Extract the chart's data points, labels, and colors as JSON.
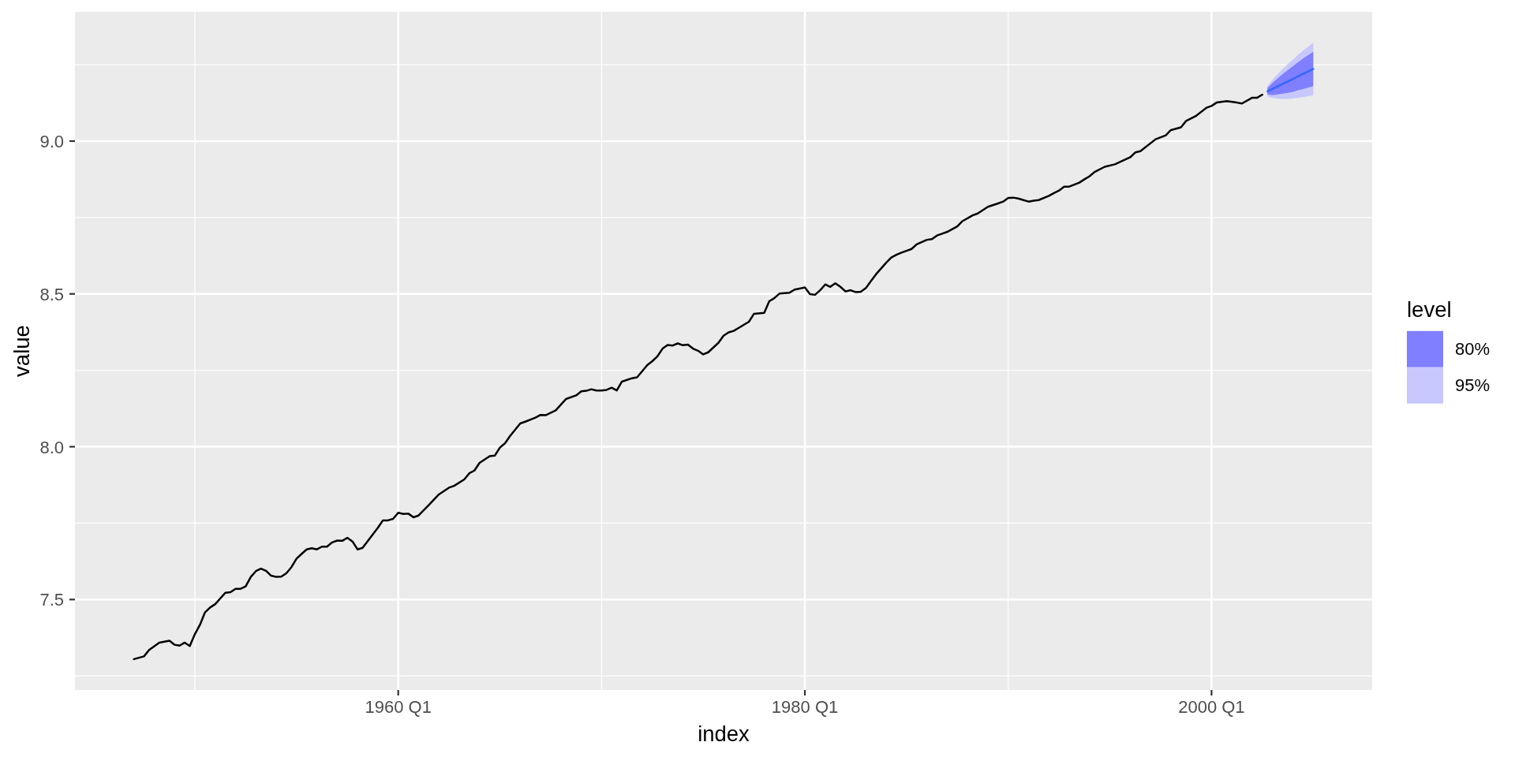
{
  "chart_data": {
    "type": "line",
    "xlabel": "index",
    "ylabel": "value",
    "legend_title": "level",
    "legend": "right",
    "grid": true,
    "xlim": [
      "1944-02-07",
      "2007-11-26"
    ],
    "xticks": [
      {
        "value": "1950-01",
        "label": null
      },
      {
        "value": "1960-01",
        "label": "1960 Q1"
      },
      {
        "value": "1970-01",
        "label": null
      },
      {
        "value": "1980-01",
        "label": "1980 Q1"
      },
      {
        "value": "1990-01",
        "label": null
      },
      {
        "value": "2000-01",
        "label": "2000 Q1"
      }
    ],
    "ylim": [
      7.204,
      9.423
    ],
    "yticks": [
      {
        "value": 7.25,
        "label": null
      },
      7.5,
      {
        "value": 7.75,
        "label": null
      },
      {
        "value": 8,
        "label": "8.0"
      },
      {
        "value": 8.25,
        "label": null
      },
      8.5,
      {
        "value": 8.75,
        "label": null
      },
      {
        "value": 9,
        "label": "9.0"
      },
      {
        "value": 9.25,
        "label": null
      }
    ],
    "series": [
      {
        "color": "#000000",
        "x": [
          "1947-01",
          "1947-07",
          "1947-10",
          "1948-04",
          "1948-10",
          "1949-01",
          "1949-04",
          "1949-07",
          "1949-10",
          "1950-01",
          "1950-04",
          "1950-07",
          "1950-10",
          "1951-01",
          "1951-07",
          "1951-10",
          "1952-01",
          "1952-04",
          "1952-07",
          "1952-10",
          "1953-01",
          "1953-04",
          "1953-07",
          "1953-10",
          "1954-01",
          "1954-04",
          "1954-07",
          "1954-10",
          "1955-01",
          "1955-04",
          "1955-07",
          "1955-10",
          "1956-01",
          "1956-04",
          "1956-07",
          "1956-10",
          "1957-01",
          "1957-04",
          "1957-07",
          "1957-10",
          "1958-01",
          "1958-04",
          "1958-10",
          "1959-01",
          "1959-04",
          "1959-07",
          "1959-10",
          "1960-01",
          "1960-04",
          "1960-07",
          "1960-10",
          "1961-01",
          "1961-07",
          "1962-01",
          "1962-07",
          "1962-10",
          "1963-04",
          "1963-07",
          "1963-10",
          "1964-01",
          "1964-07",
          "1964-10",
          "1965-01",
          "1965-04",
          "1965-07",
          "1966-01",
          "1966-04",
          "1966-10",
          "1967-01",
          "1967-04",
          "1967-10",
          "1968-04",
          "1968-10",
          "1969-01",
          "1969-04",
          "1969-07",
          "1969-10",
          "1970-01",
          "1970-04",
          "1970-07",
          "1970-10",
          "1971-01",
          "1971-07",
          "1971-10",
          "1972-04",
          "1972-07",
          "1972-10",
          "1973-01",
          "1973-04",
          "1973-07",
          "1973-10",
          "1974-01",
          "1974-04",
          "1974-07",
          "1974-10",
          "1975-01",
          "1975-04",
          "1975-10",
          "1976-01",
          "1976-04",
          "1976-07",
          "1976-10",
          "1977-04",
          "1977-07",
          "1978-01",
          "1978-04",
          "1978-07",
          "1978-10",
          "1979-04",
          "1979-07",
          "1980-01",
          "1980-04",
          "1980-07",
          "1980-10",
          "1981-01",
          "1981-04",
          "1981-07",
          "1981-10",
          "1982-01",
          "1982-04",
          "1982-07",
          "1982-10",
          "1983-01",
          "1983-04",
          "1983-07",
          "1984-01",
          "1984-04",
          "1984-07",
          "1984-10",
          "1985-04",
          "1985-07",
          "1986-01",
          "1986-04",
          "1986-07",
          "1986-10",
          "1987-01",
          "1987-07",
          "1987-10",
          "1988-04",
          "1988-07",
          "1989-01",
          "1989-07",
          "1989-10",
          "1990-01",
          "1990-04",
          "1990-07",
          "1991-01",
          "1991-04",
          "1991-07",
          "1992-01",
          "1992-04",
          "1992-07",
          "1992-10",
          "1993-01",
          "1993-07",
          "1993-10",
          "1994-01",
          "1994-04",
          "1994-10",
          "1995-04",
          "1996-01",
          "1996-04",
          "1996-07",
          "1997-04",
          "1997-10",
          "1998-01",
          "1998-07",
          "1998-10",
          "1999-04",
          "1999-10",
          "2000-01",
          "2000-04",
          "2000-10",
          "2001-04",
          "2001-07",
          "2002-01",
          "2002-04",
          "2002-07"
        ],
        "values": [
          7.305,
          7.314,
          7.335,
          7.359,
          7.365,
          7.352,
          7.349,
          7.359,
          7.348,
          7.387,
          7.417,
          7.458,
          7.474,
          7.485,
          7.522,
          7.524,
          7.535,
          7.535,
          7.543,
          7.574,
          7.593,
          7.601,
          7.594,
          7.578,
          7.574,
          7.575,
          7.586,
          7.606,
          7.634,
          7.649,
          7.664,
          7.668,
          7.664,
          7.673,
          7.673,
          7.687,
          7.693,
          7.692,
          7.702,
          7.69,
          7.664,
          7.669,
          7.713,
          7.735,
          7.759,
          7.759,
          7.764,
          7.784,
          7.78,
          7.781,
          7.769,
          7.775,
          7.809,
          7.844,
          7.866,
          7.872,
          7.893,
          7.913,
          7.922,
          7.947,
          7.969,
          7.971,
          7.997,
          8.011,
          8.035,
          8.076,
          8.082,
          8.095,
          8.104,
          8.103,
          8.119,
          8.156,
          8.168,
          8.181,
          8.183,
          8.188,
          8.184,
          8.184,
          8.186,
          8.193,
          8.184,
          8.213,
          8.224,
          8.227,
          8.267,
          8.28,
          8.296,
          8.321,
          8.333,
          8.331,
          8.338,
          8.332,
          8.334,
          8.321,
          8.314,
          8.302,
          8.309,
          8.34,
          8.363,
          8.374,
          8.379,
          8.389,
          8.409,
          8.435,
          8.438,
          8.476,
          8.486,
          8.501,
          8.504,
          8.514,
          8.521,
          8.499,
          8.497,
          8.512,
          8.531,
          8.523,
          8.535,
          8.523,
          8.508,
          8.512,
          8.506,
          8.507,
          8.519,
          8.542,
          8.564,
          8.602,
          8.619,
          8.628,
          8.635,
          8.647,
          8.662,
          8.677,
          8.679,
          8.691,
          8.697,
          8.703,
          8.721,
          8.738,
          8.757,
          8.763,
          8.785,
          8.796,
          8.802,
          8.814,
          8.815,
          8.812,
          8.802,
          8.805,
          8.807,
          8.821,
          8.83,
          8.838,
          8.851,
          8.851,
          8.864,
          8.875,
          8.885,
          8.899,
          8.916,
          8.924,
          8.947,
          8.963,
          8.967,
          9.006,
          9.019,
          9.036,
          9.045,
          9.066,
          9.083,
          9.109,
          9.115,
          9.126,
          9.131,
          9.126,
          9.123,
          9.142,
          9.142,
          9.152
        ]
      },
      {
        "name": "80%",
        "color": "#7f7fff",
        "x": [
          "2002-10",
          "2003-01",
          "2003-04",
          "2003-07",
          "2003-10",
          "2004-01",
          "2004-04",
          "2004-07",
          "2004-10",
          "2005-01"
        ],
        "values": [
          null,
          null,
          null,
          null,
          null,
          null,
          null,
          null,
          null,
          null
        ],
        "lower": [
          9.152,
          9.151,
          9.153,
          9.155,
          9.158,
          9.161,
          9.166,
          9.17,
          9.175,
          9.18
        ],
        "upper": [
          9.174,
          9.191,
          9.205,
          9.219,
          9.232,
          9.245,
          9.258,
          9.27,
          9.281,
          9.292
        ]
      },
      {
        "name": "95%",
        "color": "#c8c8ff",
        "x": [
          "2002-10",
          "2003-01",
          "2003-04",
          "2003-07",
          "2003-10",
          "2004-01",
          "2004-04",
          "2004-07",
          "2004-10",
          "2005-01"
        ],
        "values": [
          null,
          null,
          null,
          null,
          null,
          null,
          null,
          null,
          null,
          null
        ],
        "lower": [
          9.146,
          9.141,
          9.139,
          9.138,
          9.138,
          9.139,
          9.142,
          9.144,
          9.147,
          9.15
        ],
        "upper": [
          9.18,
          9.201,
          9.219,
          9.236,
          9.252,
          9.267,
          9.282,
          9.296,
          9.309,
          9.322
        ]
      },
      {
        "color": "#3366ff",
        "x": [
          "2002-10",
          "2003-01",
          "2003-04",
          "2003-07",
          "2003-10",
          "2004-01",
          "2004-04",
          "2004-07",
          "2004-10",
          "2005-01"
        ],
        "values": [
          9.163,
          9.171,
          9.179,
          9.187,
          9.195,
          9.203,
          9.212,
          9.22,
          9.228,
          9.236
        ]
      }
    ]
  }
}
